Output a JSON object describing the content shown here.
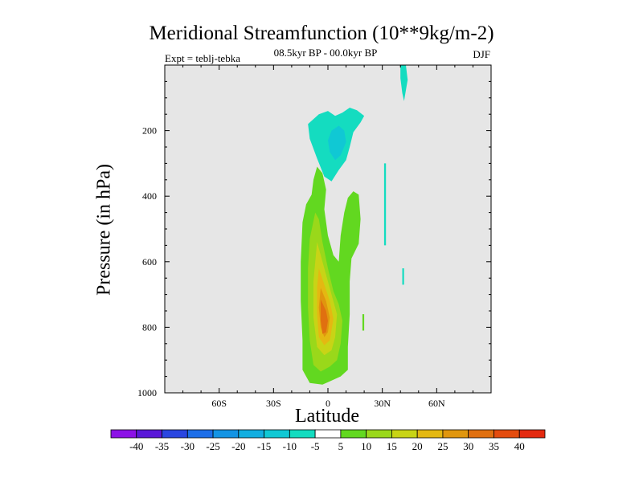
{
  "chart_data": {
    "type": "heatmap",
    "title": "Meridional Streamfunction (10**9kg/m-2)",
    "subtitle_left": "Expt = teblj-tebka",
    "subtitle_center": "08.5kyr BP - 00.0kyr BP",
    "subtitle_right": "DJF",
    "xlabel": "Latitude",
    "ylabel": "Pressure (in hPa)",
    "xlim": [
      -90,
      90
    ],
    "ylim": [
      1000,
      0
    ],
    "x_ticks": [
      {
        "value": -60,
        "label": "60S"
      },
      {
        "value": -30,
        "label": "30S"
      },
      {
        "value": 0,
        "label": "0"
      },
      {
        "value": 30,
        "label": "30N"
      },
      {
        "value": 60,
        "label": "60N"
      }
    ],
    "y_ticks": [
      {
        "value": 200,
        "label": "200"
      },
      {
        "value": 400,
        "label": "400"
      },
      {
        "value": 600,
        "label": "600"
      },
      {
        "value": 800,
        "label": "800"
      },
      {
        "value": 1000,
        "label": "1000"
      }
    ],
    "colorbar": {
      "labels": [
        "-40",
        "-35",
        "-30",
        "-25",
        "-20",
        "-15",
        "-10",
        "-5",
        "5",
        "10",
        "15",
        "20",
        "25",
        "30",
        "35",
        "40"
      ],
      "colors": [
        "#8c12e6",
        "#5a18d8",
        "#2a46e0",
        "#1c6ee8",
        "#1494e4",
        "#12aee0",
        "#10c8d4",
        "#14dcc0",
        "#ffffff",
        "#62d820",
        "#9ad81a",
        "#c8d416",
        "#e4b812",
        "#e0960e",
        "#e07010",
        "#e44c0e",
        "#e42a10"
      ]
    },
    "regions": [
      {
        "name": "negative-upper-cell",
        "level": -5,
        "points": [
          [
            -5,
            150
          ],
          [
            0,
            140
          ],
          [
            4,
            155
          ],
          [
            8,
            145
          ],
          [
            12,
            130
          ],
          [
            16,
            138
          ],
          [
            20,
            155
          ],
          [
            18,
            175
          ],
          [
            14,
            205
          ],
          [
            12,
            250
          ],
          [
            10,
            290
          ],
          [
            6,
            320
          ],
          [
            2,
            355
          ],
          [
            -2,
            340
          ],
          [
            -6,
            285
          ],
          [
            -10,
            225
          ],
          [
            -11,
            180
          ]
        ]
      },
      {
        "name": "negative-upper-core",
        "level": -10,
        "points": [
          [
            2,
            200
          ],
          [
            6,
            185
          ],
          [
            9,
            200
          ],
          [
            10,
            235
          ],
          [
            7,
            275
          ],
          [
            4,
            290
          ],
          [
            1,
            265
          ],
          [
            0,
            230
          ]
        ]
      },
      {
        "name": "negative-north-top",
        "level": -5,
        "points": [
          [
            40,
            0
          ],
          [
            43,
            0
          ],
          [
            44,
            45
          ],
          [
            42,
            110
          ],
          [
            41,
            85
          ],
          [
            40,
            40
          ]
        ]
      },
      {
        "name": "negative-north-sliver-a",
        "level": -5,
        "points": [
          [
            31,
            300
          ],
          [
            32,
            300
          ],
          [
            32,
            550
          ],
          [
            31,
            550
          ]
        ]
      },
      {
        "name": "negative-north-sliver-b",
        "level": -5,
        "points": [
          [
            41,
            620
          ],
          [
            42,
            620
          ],
          [
            42,
            670
          ],
          [
            41,
            670
          ]
        ]
      },
      {
        "name": "positive-cell",
        "level": 5,
        "points": [
          [
            -6,
            310
          ],
          [
            -3,
            330
          ],
          [
            -1,
            380
          ],
          [
            -2,
            440
          ],
          [
            0,
            520
          ],
          [
            3,
            580
          ],
          [
            6,
            600
          ],
          [
            7,
            520
          ],
          [
            9,
            450
          ],
          [
            11,
            405
          ],
          [
            14,
            385
          ],
          [
            17,
            395
          ],
          [
            18,
            470
          ],
          [
            17,
            545
          ],
          [
            13,
            590
          ],
          [
            12,
            660
          ],
          [
            12,
            760
          ],
          [
            11,
            860
          ],
          [
            11,
            930
          ],
          [
            7,
            950
          ],
          [
            1,
            965
          ],
          [
            -3,
            975
          ],
          [
            -10,
            970
          ],
          [
            -14,
            930
          ],
          [
            -14,
            840
          ],
          [
            -15,
            720
          ],
          [
            -15,
            600
          ],
          [
            -14,
            480
          ],
          [
            -12,
            425
          ],
          [
            -9,
            395
          ],
          [
            -8,
            350
          ]
        ]
      },
      {
        "name": "positive-north-sliver",
        "level": 5,
        "points": [
          [
            19,
            760
          ],
          [
            20,
            760
          ],
          [
            20,
            810
          ],
          [
            19,
            810
          ]
        ]
      },
      {
        "name": "positive-level-10",
        "level": 10,
        "points": [
          [
            -7,
            450
          ],
          [
            -5,
            470
          ],
          [
            -3,
            540
          ],
          [
            0,
            620
          ],
          [
            3,
            690
          ],
          [
            6,
            730
          ],
          [
            8,
            780
          ],
          [
            7,
            850
          ],
          [
            5,
            900
          ],
          [
            1,
            920
          ],
          [
            -4,
            935
          ],
          [
            -8,
            915
          ],
          [
            -10,
            840
          ],
          [
            -11,
            740
          ],
          [
            -11,
            620
          ],
          [
            -10,
            530
          ]
        ]
      },
      {
        "name": "positive-level-15",
        "level": 15,
        "points": [
          [
            -6,
            540
          ],
          [
            -4,
            580
          ],
          [
            -1,
            640
          ],
          [
            2,
            700
          ],
          [
            5,
            760
          ],
          [
            4,
            830
          ],
          [
            2,
            870
          ],
          [
            -2,
            885
          ],
          [
            -6,
            860
          ],
          [
            -8,
            770
          ],
          [
            -8,
            660
          ]
        ]
      },
      {
        "name": "positive-level-20",
        "level": 20,
        "points": [
          [
            -5,
            620
          ],
          [
            -2,
            670
          ],
          [
            1,
            720
          ],
          [
            3,
            775
          ],
          [
            1,
            840
          ],
          [
            -2,
            855
          ],
          [
            -5,
            830
          ],
          [
            -6,
            760
          ],
          [
            -6,
            680
          ]
        ]
      },
      {
        "name": "positive-level-25",
        "level": 25,
        "points": [
          [
            -4,
            680
          ],
          [
            -1,
            720
          ],
          [
            1,
            770
          ],
          [
            0,
            815
          ],
          [
            -2,
            830
          ],
          [
            -4,
            800
          ],
          [
            -5,
            740
          ]
        ]
      },
      {
        "name": "positive-level-30",
        "level": 30,
        "points": [
          [
            -4,
            715
          ],
          [
            -1,
            750
          ],
          [
            0,
            780
          ],
          [
            -1,
            815
          ],
          [
            -3,
            820
          ],
          [
            -4,
            780
          ]
        ]
      }
    ]
  }
}
